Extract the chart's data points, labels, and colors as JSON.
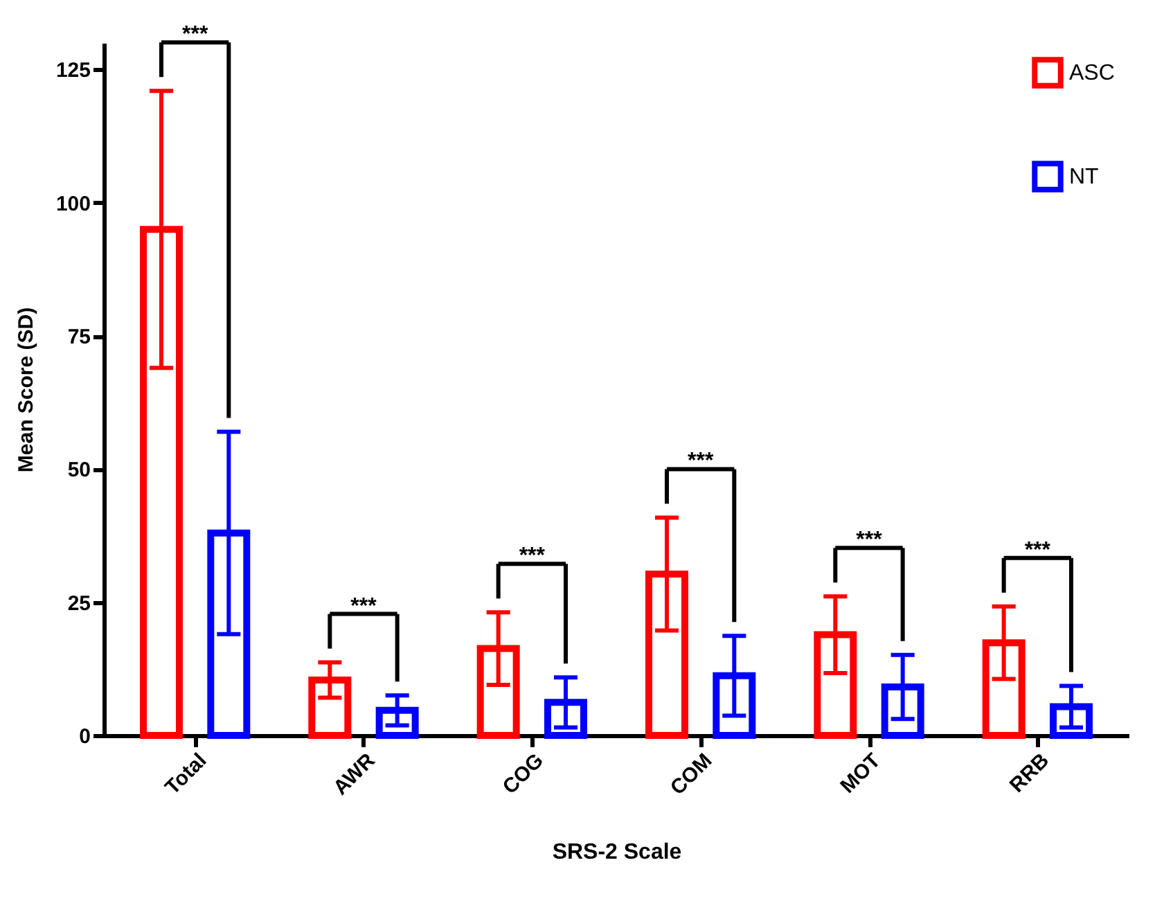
{
  "chart_data": {
    "type": "bar",
    "xlabel": "SRS-2 Scale",
    "ylabel": "Mean Score (SD)",
    "categories": [
      "Total",
      "AWR",
      "COG",
      "COM",
      "MOT",
      "RRB"
    ],
    "series": [
      {
        "name": "ASC",
        "color": "#ff0000",
        "values": [
          95,
          10.4,
          16.3,
          30.3,
          18.9,
          17.4
        ],
        "errors": [
          26,
          3.3,
          6.8,
          10.6,
          7.2,
          6.8
        ]
      },
      {
        "name": "NT",
        "color": "#0000ff",
        "values": [
          38,
          4.7,
          6.2,
          11.2,
          9.1,
          5.4
        ],
        "errors": [
          19,
          2.8,
          4.7,
          7.5,
          6,
          3.9
        ]
      }
    ],
    "ylim": [
      0,
      130
    ],
    "yticks": [
      0,
      25,
      50,
      75,
      100,
      125
    ],
    "legend": "top right",
    "grid": false,
    "annotations": [
      "***",
      "***",
      "***",
      "***",
      "***",
      "***"
    ]
  }
}
